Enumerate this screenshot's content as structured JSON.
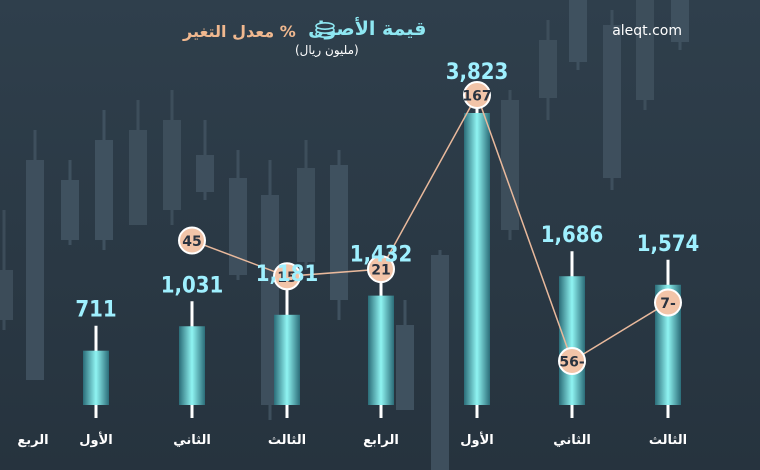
{
  "source": "aleqt.com",
  "legend": {
    "assets_label": "قيمة الأصول",
    "assets_unit": "(مليون ريال)",
    "change_label": "% معدل التغير"
  },
  "colors": {
    "background": "#2e3d4a",
    "bar_edge": "#2b6c78",
    "bar_glow": "#8ff4f2",
    "value_text": "#9ff0ff",
    "circle_fill": "#f2c4a8",
    "circle_stroke": "#ffffff",
    "change_text": "#2a3340",
    "line": "#e9b99c",
    "legend_orange": "#f0b88f",
    "legend_cyan": "#8ee7f2",
    "quarter_text": "#ffffff"
  },
  "chart_data": {
    "type": "bar",
    "edge_label": "الربع",
    "categories": [
      "الأول",
      "الثاني",
      "الثالث",
      "الرابع",
      "الأول",
      "الثاني",
      "الثالث"
    ],
    "series": [
      {
        "name": "قيمة الأصول",
        "values": [
          711,
          1031,
          1181,
          1432,
          3823,
          1686,
          1574
        ],
        "labels": [
          "711",
          "1,031",
          "1,181",
          "1,432",
          "3,823",
          "1,686",
          "1,574"
        ]
      },
      {
        "name": "% معدل التغير",
        "type": "line",
        "values": [
          null,
          45,
          15,
          21,
          167,
          -56,
          -7
        ],
        "labels": [
          "",
          "45",
          "15",
          "21",
          "167",
          "56-",
          "7-"
        ]
      }
    ]
  }
}
